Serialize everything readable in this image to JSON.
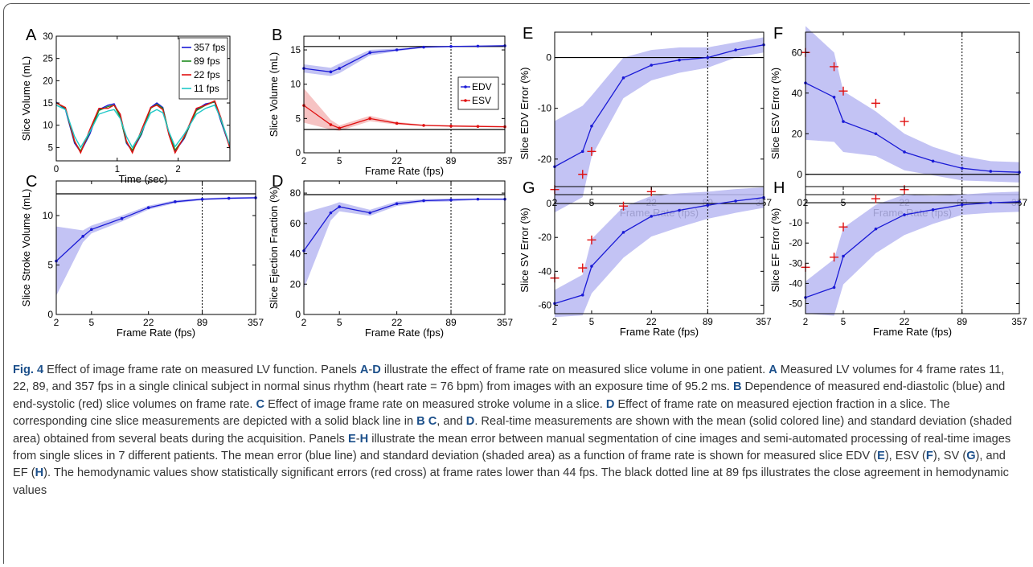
{
  "figure": {
    "panels": [
      {
        "key": "A",
        "label": "A",
        "xlabel": "Time (sec)",
        "ylabel": "Slice Volume (mL)"
      },
      {
        "key": "B",
        "label": "B",
        "xlabel": "Frame Rate (fps)",
        "ylabel": "Slice Volume (mL)"
      },
      {
        "key": "C",
        "label": "C",
        "xlabel": "Frame Rate (fps)",
        "ylabel": "Slice Stroke Volume (mL)"
      },
      {
        "key": "D",
        "label": "D",
        "xlabel": "Frame Rate (fps)",
        "ylabel": "Slice Ejection Fraction (%)"
      },
      {
        "key": "E",
        "label": "E",
        "xlabel": "Frame Rate (fps)",
        "ylabel": "Slice EDV Error (%)"
      },
      {
        "key": "F",
        "label": "F",
        "xlabel": "Frame Rate (fps)",
        "ylabel": "Slice ESV Error (%)"
      },
      {
        "key": "G",
        "label": "G",
        "xlabel": "Frame Rate (fps)",
        "ylabel": "Slice SV Error (%)"
      },
      {
        "key": "H",
        "label": "H",
        "xlabel": "Frame Rate (fps)",
        "ylabel": "Slice EF Error (%)"
      }
    ]
  },
  "colors": {
    "blue": "#1a1ad6",
    "red": "#e01010",
    "green": "#1e8a1e",
    "cyan": "#20c8c8",
    "band": "#b8b8f2",
    "redband": "#f4b8b8"
  },
  "chart_data": [
    {
      "panel": "A",
      "type": "line",
      "xlabel": "Time (sec)",
      "ylabel": "Slice Volume (mL)",
      "xlim": [
        0,
        2.85
      ],
      "ylim": [
        2,
        30
      ],
      "xticks": [
        0,
        1,
        2
      ],
      "yticks": [
        5,
        10,
        15,
        20,
        25,
        30
      ],
      "legend": "top-right",
      "grid": false,
      "series": [
        {
          "name": "357 fps",
          "color": "#1a1ad6",
          "x": [
            0,
            0.15,
            0.3,
            0.4,
            0.55,
            0.7,
            0.85,
            0.95,
            1.05,
            1.15,
            1.25,
            1.4,
            1.55,
            1.65,
            1.75,
            1.85,
            1.95,
            2.1,
            2.3,
            2.45,
            2.6,
            2.7,
            2.85
          ],
          "y": [
            15.2,
            13.5,
            6,
            4,
            8,
            13.5,
            14.5,
            14.8,
            12,
            6,
            4.2,
            8,
            14,
            15,
            14,
            8,
            4.2,
            7,
            13.5,
            14.8,
            15.2,
            11,
            5
          ]
        },
        {
          "name": "89 fps",
          "color": "#1e8a1e",
          "x": [
            0,
            0.15,
            0.3,
            0.4,
            0.55,
            0.7,
            0.85,
            0.95,
            1.05,
            1.15,
            1.25,
            1.4,
            1.55,
            1.65,
            1.75,
            1.85,
            1.95,
            2.1,
            2.3,
            2.45,
            2.6,
            2.7,
            2.85
          ],
          "y": [
            15,
            13.8,
            6.3,
            4.2,
            8.4,
            13.3,
            14.2,
            14.5,
            11.8,
            6.2,
            4.4,
            8.2,
            13.8,
            14.7,
            13.8,
            8.2,
            4.4,
            7.2,
            13.3,
            14.5,
            15.3,
            11.3,
            5.2
          ]
        },
        {
          "name": "22 fps",
          "color": "#e01010",
          "x": [
            0,
            0.15,
            0.3,
            0.4,
            0.55,
            0.7,
            0.85,
            0.95,
            1.05,
            1.15,
            1.25,
            1.4,
            1.55,
            1.65,
            1.75,
            1.85,
            1.95,
            2.1,
            2.3,
            2.45,
            2.6,
            2.7,
            2.85
          ],
          "y": [
            15,
            14,
            6.5,
            3.8,
            9,
            13.8,
            13.8,
            14.5,
            12.5,
            6.5,
            3.8,
            9,
            14,
            14.5,
            13.5,
            7.8,
            3.8,
            7.5,
            13.8,
            14.5,
            15.5,
            11.8,
            4.8
          ]
        },
        {
          "name": "11 fps",
          "color": "#20c8c8",
          "x": [
            0,
            0.15,
            0.3,
            0.4,
            0.55,
            0.7,
            0.85,
            0.95,
            1.05,
            1.15,
            1.25,
            1.4,
            1.55,
            1.65,
            1.75,
            1.85,
            1.95,
            2.1,
            2.3,
            2.45,
            2.6,
            2.7,
            2.85
          ],
          "y": [
            14.5,
            13.5,
            7.5,
            5,
            8.5,
            12.5,
            13.2,
            13.5,
            11.5,
            7.5,
            5,
            8.5,
            12.8,
            13.5,
            12.8,
            8.5,
            5.2,
            8,
            12.5,
            13.8,
            14.5,
            11.5,
            5.5
          ]
        }
      ]
    },
    {
      "panel": "B",
      "type": "line",
      "xlabel": "Frame Rate (fps)",
      "ylabel": "Slice Volume (mL)",
      "xscale": "log",
      "xlim": [
        2,
        357
      ],
      "ylim": [
        0,
        17
      ],
      "xticks": [
        2,
        5,
        22,
        89,
        357
      ],
      "yticks": [
        0,
        5,
        10,
        15
      ],
      "reference_lines": {
        "EDV_cine": 15.5,
        "ESV_cine": 3.4
      },
      "vline": 89,
      "legend": "right",
      "series": [
        {
          "name": "EDV",
          "color": "#1a1ad6",
          "x": [
            2,
            4,
            5,
            11,
            22,
            44,
            89,
            178,
            357
          ],
          "y": [
            12.3,
            11.8,
            12.3,
            14.6,
            15.0,
            15.4,
            15.5,
            15.55,
            15.6
          ],
          "sd": [
            0.6,
            0.6,
            0.7,
            0.4,
            0.2,
            0.1,
            0.1,
            0.1,
            0.1
          ]
        },
        {
          "name": "ESV",
          "color": "#e01010",
          "x": [
            2,
            4,
            5,
            11,
            22,
            44,
            89,
            178,
            357
          ],
          "y": [
            6.9,
            4.1,
            3.6,
            5.0,
            4.3,
            4.0,
            3.9,
            3.85,
            3.8
          ],
          "sd": [
            2.5,
            0.7,
            0.4,
            0.4,
            0.2,
            0.1,
            0.1,
            0.1,
            0.1
          ]
        }
      ]
    },
    {
      "panel": "C",
      "type": "line",
      "xlabel": "Frame Rate (fps)",
      "ylabel": "Slice Stroke Volume (mL)",
      "xscale": "log",
      "xlim": [
        2,
        357
      ],
      "ylim": [
        0,
        13.5
      ],
      "xticks": [
        2,
        5,
        22,
        89,
        357
      ],
      "yticks": [
        0,
        5,
        10
      ],
      "reference_lines": {
        "cine": 12.2
      },
      "vline": 89,
      "series": [
        {
          "name": "",
          "color": "#1a1ad6",
          "x": [
            2,
            4,
            5,
            11,
            22,
            44,
            89,
            178,
            357
          ],
          "y": [
            5.4,
            7.9,
            8.6,
            9.7,
            10.8,
            11.4,
            11.65,
            11.75,
            11.8
          ],
          "sd": [
            3.5,
            0.6,
            0.4,
            0.3,
            0.2,
            0.15,
            0.1,
            0.1,
            0.1
          ]
        }
      ]
    },
    {
      "panel": "D",
      "type": "line",
      "xlabel": "Frame Rate (fps)",
      "ylabel": "Slice Ejection Fraction (%)",
      "xscale": "log",
      "xlim": [
        2,
        357
      ],
      "ylim": [
        0,
        88
      ],
      "xticks": [
        2,
        5,
        22,
        89,
        357
      ],
      "yticks": [
        0,
        20,
        40,
        60,
        80
      ],
      "reference_lines": {
        "cine": 79
      },
      "vline": 89,
      "series": [
        {
          "name": "",
          "color": "#1a1ad6",
          "x": [
            2,
            4,
            5,
            11,
            22,
            44,
            89,
            178,
            357
          ],
          "y": [
            42,
            67,
            71,
            67,
            73,
            75,
            75.5,
            76,
            76
          ],
          "sd": [
            25,
            5,
            3,
            2,
            1.5,
            1,
            1,
            0.5,
            0.5
          ]
        }
      ]
    },
    {
      "panel": "E",
      "type": "line",
      "xlabel": "Frame Rate (fps)",
      "ylabel": "Slice EDV Error (%)",
      "xscale": "log",
      "xlim": [
        2,
        357
      ],
      "ylim": [
        -27,
        5
      ],
      "xticks": [
        2,
        5,
        22,
        89,
        357
      ],
      "yticks": [
        -20,
        -10,
        0
      ],
      "reference_lines": {
        "zero": 0
      },
      "vline": 89,
      "series": [
        {
          "name": "",
          "color": "#1a1ad6",
          "x": [
            2,
            4,
            5,
            11,
            22,
            44,
            89,
            178,
            357
          ],
          "y": [
            -21.5,
            -18.5,
            -13.5,
            -4,
            -1.5,
            -0.5,
            0,
            1.5,
            2.5
          ],
          "sd": [
            9,
            9,
            6,
            4,
            3,
            2.5,
            2,
            1.5,
            1.5
          ]
        }
      ],
      "significant": {
        "x": [
          2,
          4,
          5
        ],
        "y": [
          -26,
          -23,
          -18.5
        ]
      }
    },
    {
      "panel": "F",
      "type": "line",
      "xlabel": "Frame Rate (fps)",
      "ylabel": "Slice ESV Error (%)",
      "xscale": "log",
      "xlim": [
        2,
        357
      ],
      "ylim": [
        -10,
        70
      ],
      "xticks": [
        2,
        5,
        22,
        89,
        357
      ],
      "yticks": [
        0,
        20,
        40,
        60
      ],
      "reference_lines": {
        "zero": 0
      },
      "vline": 89,
      "series": [
        {
          "name": "",
          "color": "#1a1ad6",
          "x": [
            2,
            4,
            5,
            11,
            22,
            44,
            89,
            178,
            357
          ],
          "y": [
            45,
            38,
            26,
            20,
            11,
            6.5,
            3,
            1.5,
            1
          ],
          "sd": [
            28,
            22,
            15,
            11,
            9,
            7,
            6,
            5,
            5
          ]
        }
      ],
      "significant": {
        "x": [
          2,
          4,
          5,
          11,
          22
        ],
        "y": [
          60,
          53,
          41,
          35,
          26
        ]
      }
    },
    {
      "panel": "G",
      "type": "line",
      "xlabel": "Frame Rate (fps)",
      "ylabel": "Slice SV Error (%)",
      "xscale": "log",
      "xlim": [
        2,
        357
      ],
      "ylim": [
        -65,
        10
      ],
      "xticks": [
        2,
        5,
        22,
        89,
        357
      ],
      "yticks": [
        -60,
        -40,
        -20,
        0
      ],
      "reference_lines": {
        "zero": 0
      },
      "vline": 89,
      "series": [
        {
          "name": "",
          "color": "#1a1ad6",
          "x": [
            2,
            4,
            5,
            11,
            22,
            44,
            89,
            178,
            357
          ],
          "y": [
            -59,
            -54,
            -37,
            -17,
            -7.5,
            -4,
            -1,
            1.5,
            3.5
          ],
          "sd": [
            8,
            12,
            16,
            15,
            12,
            10,
            8,
            7,
            6
          ]
        }
      ],
      "significant": {
        "x": [
          2,
          4,
          5,
          11,
          22
        ],
        "y": [
          -44,
          -38,
          -21.5,
          -1.5,
          7
        ]
      }
    },
    {
      "panel": "H",
      "type": "line",
      "xlabel": "Frame Rate (fps)",
      "ylabel": "Slice EF Error (%)",
      "xscale": "log",
      "xlim": [
        2,
        357
      ],
      "ylim": [
        -55,
        8
      ],
      "xticks": [
        2,
        5,
        22,
        89,
        357
      ],
      "yticks": [
        -50,
        -40,
        -30,
        -20,
        -10,
        0
      ],
      "reference_lines": {
        "zero": 0
      },
      "vline": 89,
      "series": [
        {
          "name": "",
          "color": "#1a1ad6",
          "x": [
            2,
            4,
            5,
            11,
            22,
            44,
            89,
            178,
            357
          ],
          "y": [
            -47,
            -42,
            -26.5,
            -13,
            -6,
            -3.5,
            -1,
            0,
            0.5
          ],
          "sd": [
            8,
            14,
            14,
            12,
            10,
            7,
            5,
            5,
            5
          ]
        }
      ],
      "significant": {
        "x": [
          2,
          4,
          5,
          11,
          22
        ],
        "y": [
          -32,
          -27,
          -12,
          2,
          6.5
        ]
      }
    }
  ],
  "caption": {
    "fig_label": "Fig. 4",
    "segments": [
      {
        "t": " Effect of image frame rate on measured LV function. Panels "
      },
      {
        "t": "A",
        "b": true
      },
      {
        "t": "-"
      },
      {
        "t": "D",
        "b": true
      },
      {
        "t": " illustrate the effect of frame rate on measured slice volume in one patient. "
      },
      {
        "t": "A",
        "b": true
      },
      {
        "t": " Measured LV volumes for 4 frame rates 11, 22, 89, and 357 fps in a single clinical subject in normal sinus rhythm (heart rate = 76 bpm) from images with an exposure time of 95.2 ms. "
      },
      {
        "t": "B",
        "b": true
      },
      {
        "t": " Dependence of measured end-diastolic (blue) and end-systolic (red) slice volumes on frame rate. "
      },
      {
        "t": "C",
        "b": true
      },
      {
        "t": " Effect of image frame rate on measured stroke volume in a slice. "
      },
      {
        "t": "D",
        "b": true
      },
      {
        "t": " Effect of frame rate on measured ejection fraction in a slice. The corresponding cine slice measurements are depicted with a solid black line in "
      },
      {
        "t": "B C",
        "b": true
      },
      {
        "t": ", and "
      },
      {
        "t": "D",
        "b": true
      },
      {
        "t": ". Real-time measurements are shown with the mean (solid colored line) and standard deviation (shaded area) obtained from several beats during the acquisition. Panels "
      },
      {
        "t": "E",
        "b": true
      },
      {
        "t": "-"
      },
      {
        "t": "H",
        "b": true
      },
      {
        "t": " illustrate the mean error between manual segmentation of cine images and semi-automated processing of real-time images from single slices in 7 different patients. The mean error (blue line) and standard deviation (shaded area) as a function of frame rate is shown for measured slice EDV ("
      },
      {
        "t": "E",
        "b": true
      },
      {
        "t": "), ESV ("
      },
      {
        "t": "F",
        "b": true
      },
      {
        "t": "), SV ("
      },
      {
        "t": "G",
        "b": true
      },
      {
        "t": "), and EF ("
      },
      {
        "t": "H",
        "b": true
      },
      {
        "t": "). The hemodynamic values show statistically significant errors (red cross) at frame rates lower than 44 fps. The black dotted line at 89 fps illustrates the close agreement in hemodynamic values"
      }
    ]
  }
}
